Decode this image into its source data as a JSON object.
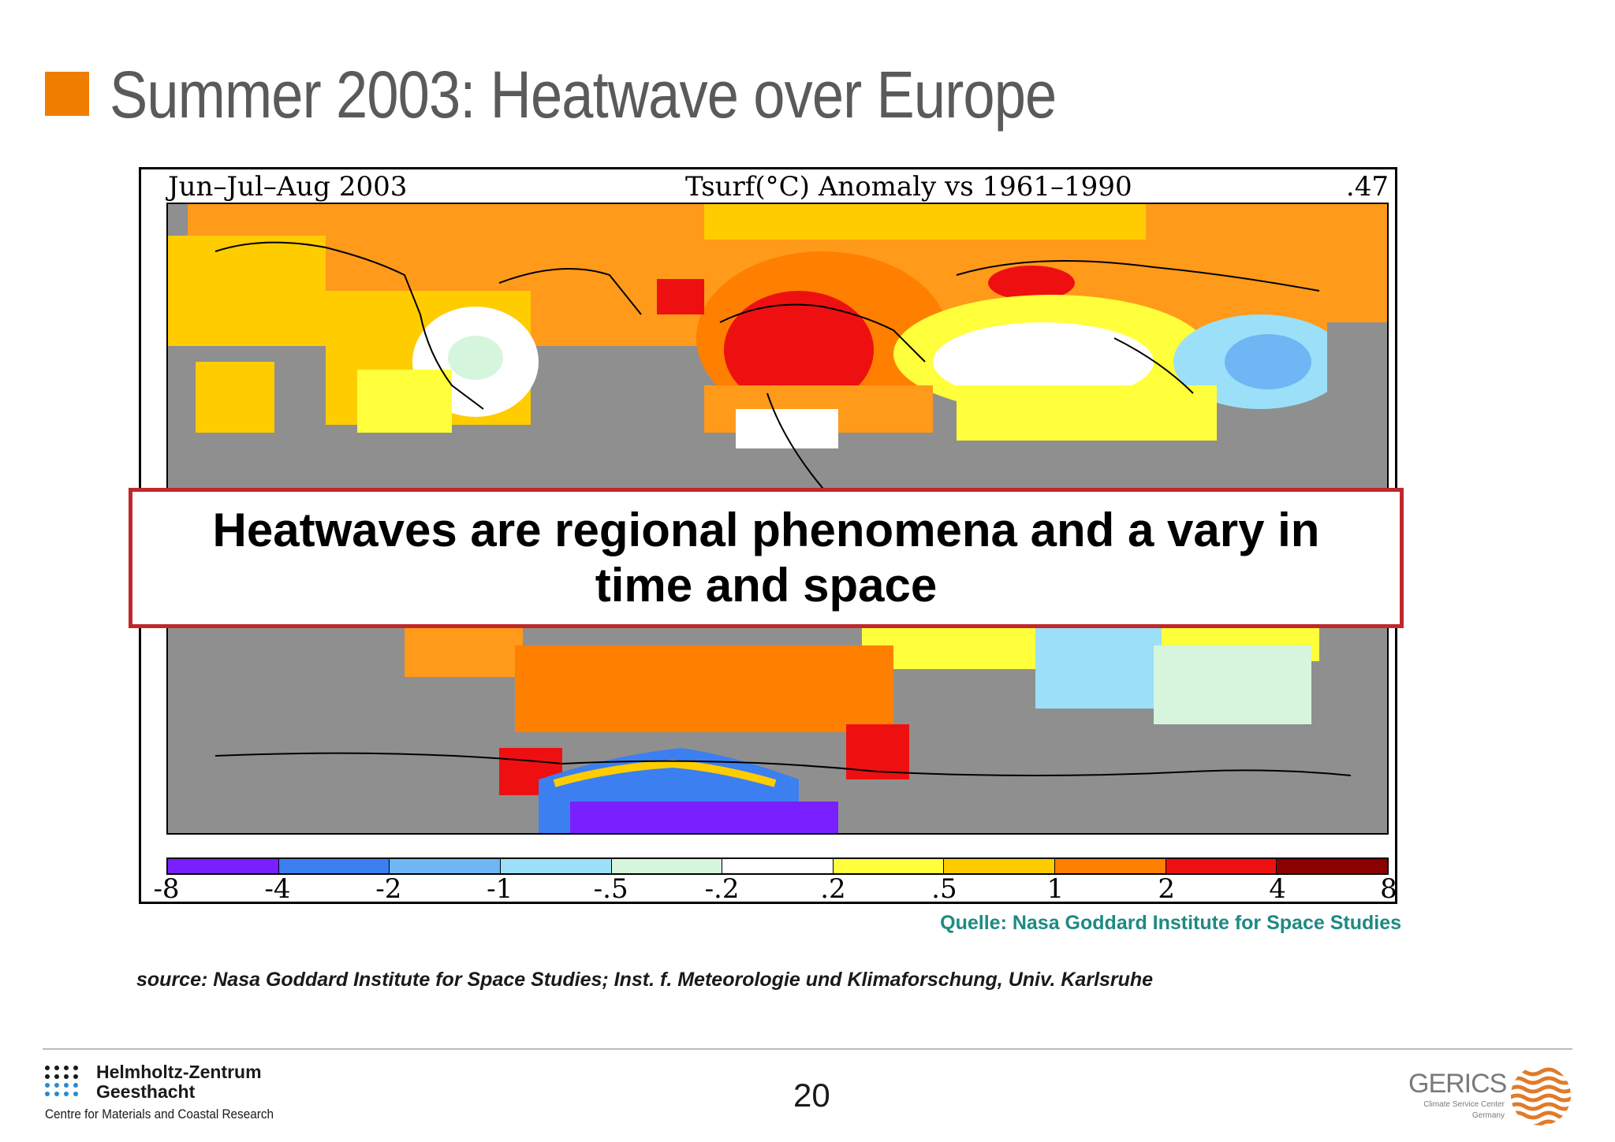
{
  "slide": {
    "title": "Summer 2003: Heatwave over Europe",
    "accent_color": "#ef7d00",
    "page_number": "20"
  },
  "map": {
    "header_left": "Jun–Jul–Aug 2003",
    "header_center": "Tsurf(°C) Anomaly vs 1961–1990",
    "header_right": ".47",
    "legend": {
      "tick_labels": [
        "-8",
        "-4",
        "-2",
        "-1",
        "-.5",
        "-.2",
        ".2",
        ".5",
        "1",
        "2",
        "4",
        "8"
      ],
      "colors": [
        "#7a1fff",
        "#3c7ff0",
        "#6fb6f5",
        "#9be0f8",
        "#d5f5dc",
        "#ffffff",
        "#ffff3c",
        "#ffcc00",
        "#ff7f00",
        "#ee1010",
        "#8b0000"
      ]
    },
    "no_data_color": "#8f8f8f"
  },
  "callout": {
    "text": "Heatwaves are regional phenomena and a vary in time and space",
    "border_color": "#c0282b"
  },
  "credit": "Quelle: Nasa Goddard Institute for Space Studies",
  "source": "source: Nasa Goddard Institute for Space Studies; Inst. f. Meteorologie und Klimaforschung, Univ. Karlsruhe",
  "footer": {
    "org_name_line1": "Helmholtz-Zentrum",
    "org_name_line2": "Geesthacht",
    "org_subtitle": "Centre for Materials and Coastal Research",
    "partner_logo_text": "GERICS",
    "partner_subtitle_line1": "Climate Service Center",
    "partner_subtitle_line2": "Germany"
  }
}
